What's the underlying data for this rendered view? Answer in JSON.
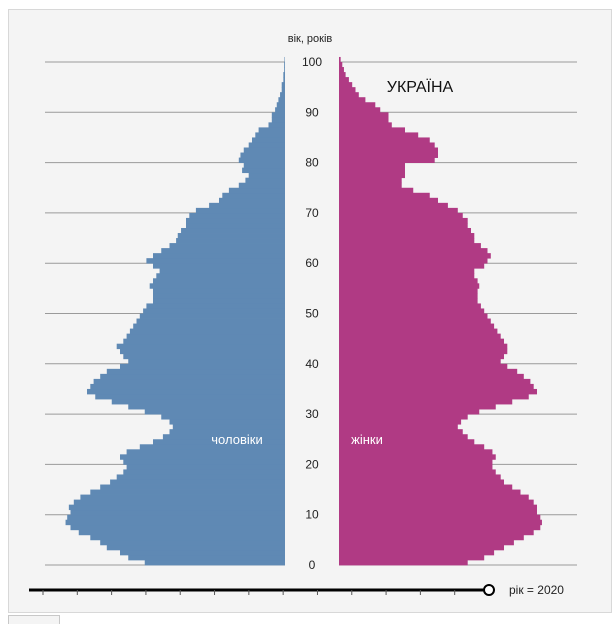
{
  "chart_data": {
    "type": "bar",
    "orientation": "horizontal-population-pyramid",
    "title": "УКРАЇНА",
    "age_axis_label": "вік, років",
    "age_ticks": [
      "0",
      "10",
      "20",
      "30",
      "40",
      "50",
      "60",
      "70",
      "80",
      "90",
      "100"
    ],
    "age_range": [
      0,
      100
    ],
    "grid": true,
    "series": [
      {
        "name": "чоловіки",
        "color": "#5f89b4",
        "ages": [
          0,
          1,
          2,
          3,
          4,
          5,
          6,
          7,
          8,
          9,
          10,
          11,
          12,
          13,
          14,
          15,
          16,
          17,
          18,
          19,
          20,
          21,
          22,
          23,
          24,
          25,
          26,
          27,
          28,
          29,
          30,
          31,
          32,
          33,
          34,
          35,
          36,
          37,
          38,
          39,
          40,
          41,
          42,
          43,
          44,
          45,
          46,
          47,
          48,
          49,
          50,
          51,
          52,
          53,
          54,
          55,
          56,
          57,
          58,
          59,
          60,
          61,
          62,
          63,
          64,
          65,
          66,
          67,
          68,
          69,
          70,
          71,
          72,
          73,
          74,
          75,
          76,
          77,
          78,
          79,
          80,
          81,
          82,
          83,
          84,
          85,
          86,
          87,
          88,
          89,
          90,
          91,
          92,
          93,
          94,
          95,
          96,
          97,
          98,
          99,
          100
        ],
        "values": [
          85,
          95,
          100,
          108,
          112,
          118,
          125,
          130,
          133,
          132,
          130,
          131,
          128,
          124,
          118,
          112,
          106,
          102,
          98,
          96,
          98,
          100,
          96,
          88,
          80,
          74,
          70,
          68,
          70,
          75,
          85,
          95,
          105,
          115,
          120,
          118,
          116,
          112,
          108,
          100,
          95,
          98,
          100,
          102,
          98,
          96,
          94,
          92,
          90,
          88,
          86,
          84,
          80,
          80,
          80,
          82,
          80,
          78,
          76,
          80,
          84,
          80,
          75,
          70,
          66,
          65,
          63,
          60,
          60,
          58,
          54,
          46,
          40,
          38,
          34,
          28,
          24,
          22,
          26,
          25,
          28,
          27,
          25,
          22,
          20,
          18,
          16,
          10,
          8,
          8,
          6,
          5,
          4,
          3,
          2,
          2,
          1,
          1,
          0.5,
          0.5,
          0.3
        ]
      },
      {
        "name": "жінки",
        "color": "#b03a84",
        "ages": [
          0,
          1,
          2,
          3,
          4,
          5,
          6,
          7,
          8,
          9,
          10,
          11,
          12,
          13,
          14,
          15,
          16,
          17,
          18,
          19,
          20,
          21,
          22,
          23,
          24,
          25,
          26,
          27,
          28,
          29,
          30,
          31,
          32,
          33,
          34,
          35,
          36,
          37,
          38,
          39,
          40,
          41,
          42,
          43,
          44,
          45,
          46,
          47,
          48,
          49,
          50,
          51,
          52,
          53,
          54,
          55,
          56,
          57,
          58,
          59,
          60,
          61,
          62,
          63,
          64,
          65,
          66,
          67,
          68,
          69,
          70,
          71,
          72,
          73,
          74,
          75,
          76,
          77,
          78,
          79,
          80,
          81,
          82,
          83,
          84,
          85,
          86,
          87,
          88,
          89,
          90,
          91,
          92,
          93,
          94,
          95,
          96,
          97,
          98,
          99,
          100
        ],
        "values": [
          78,
          88,
          94,
          100,
          106,
          112,
          118,
          122,
          123,
          122,
          120,
          120,
          118,
          115,
          110,
          105,
          100,
          98,
          95,
          93,
          93,
          95,
          93,
          88,
          82,
          78,
          75,
          72,
          74,
          78,
          85,
          95,
          105,
          115,
          120,
          118,
          116,
          112,
          108,
          102,
          98,
          100,
          102,
          102,
          100,
          98,
          96,
          94,
          92,
          90,
          88,
          86,
          84,
          84,
          84,
          85,
          84,
          82,
          82,
          88,
          90,
          92,
          90,
          86,
          82,
          82,
          80,
          78,
          78,
          75,
          72,
          66,
          60,
          55,
          45,
          38,
          38,
          40,
          40,
          40,
          58,
          60,
          60,
          58,
          55,
          48,
          40,
          32,
          30,
          30,
          25,
          22,
          16,
          12,
          10,
          8,
          6,
          4,
          3,
          2,
          1
        ]
      }
    ],
    "slider": {
      "label": "рік = 2020",
      "value": 2020,
      "position_fraction": 1.0
    }
  }
}
